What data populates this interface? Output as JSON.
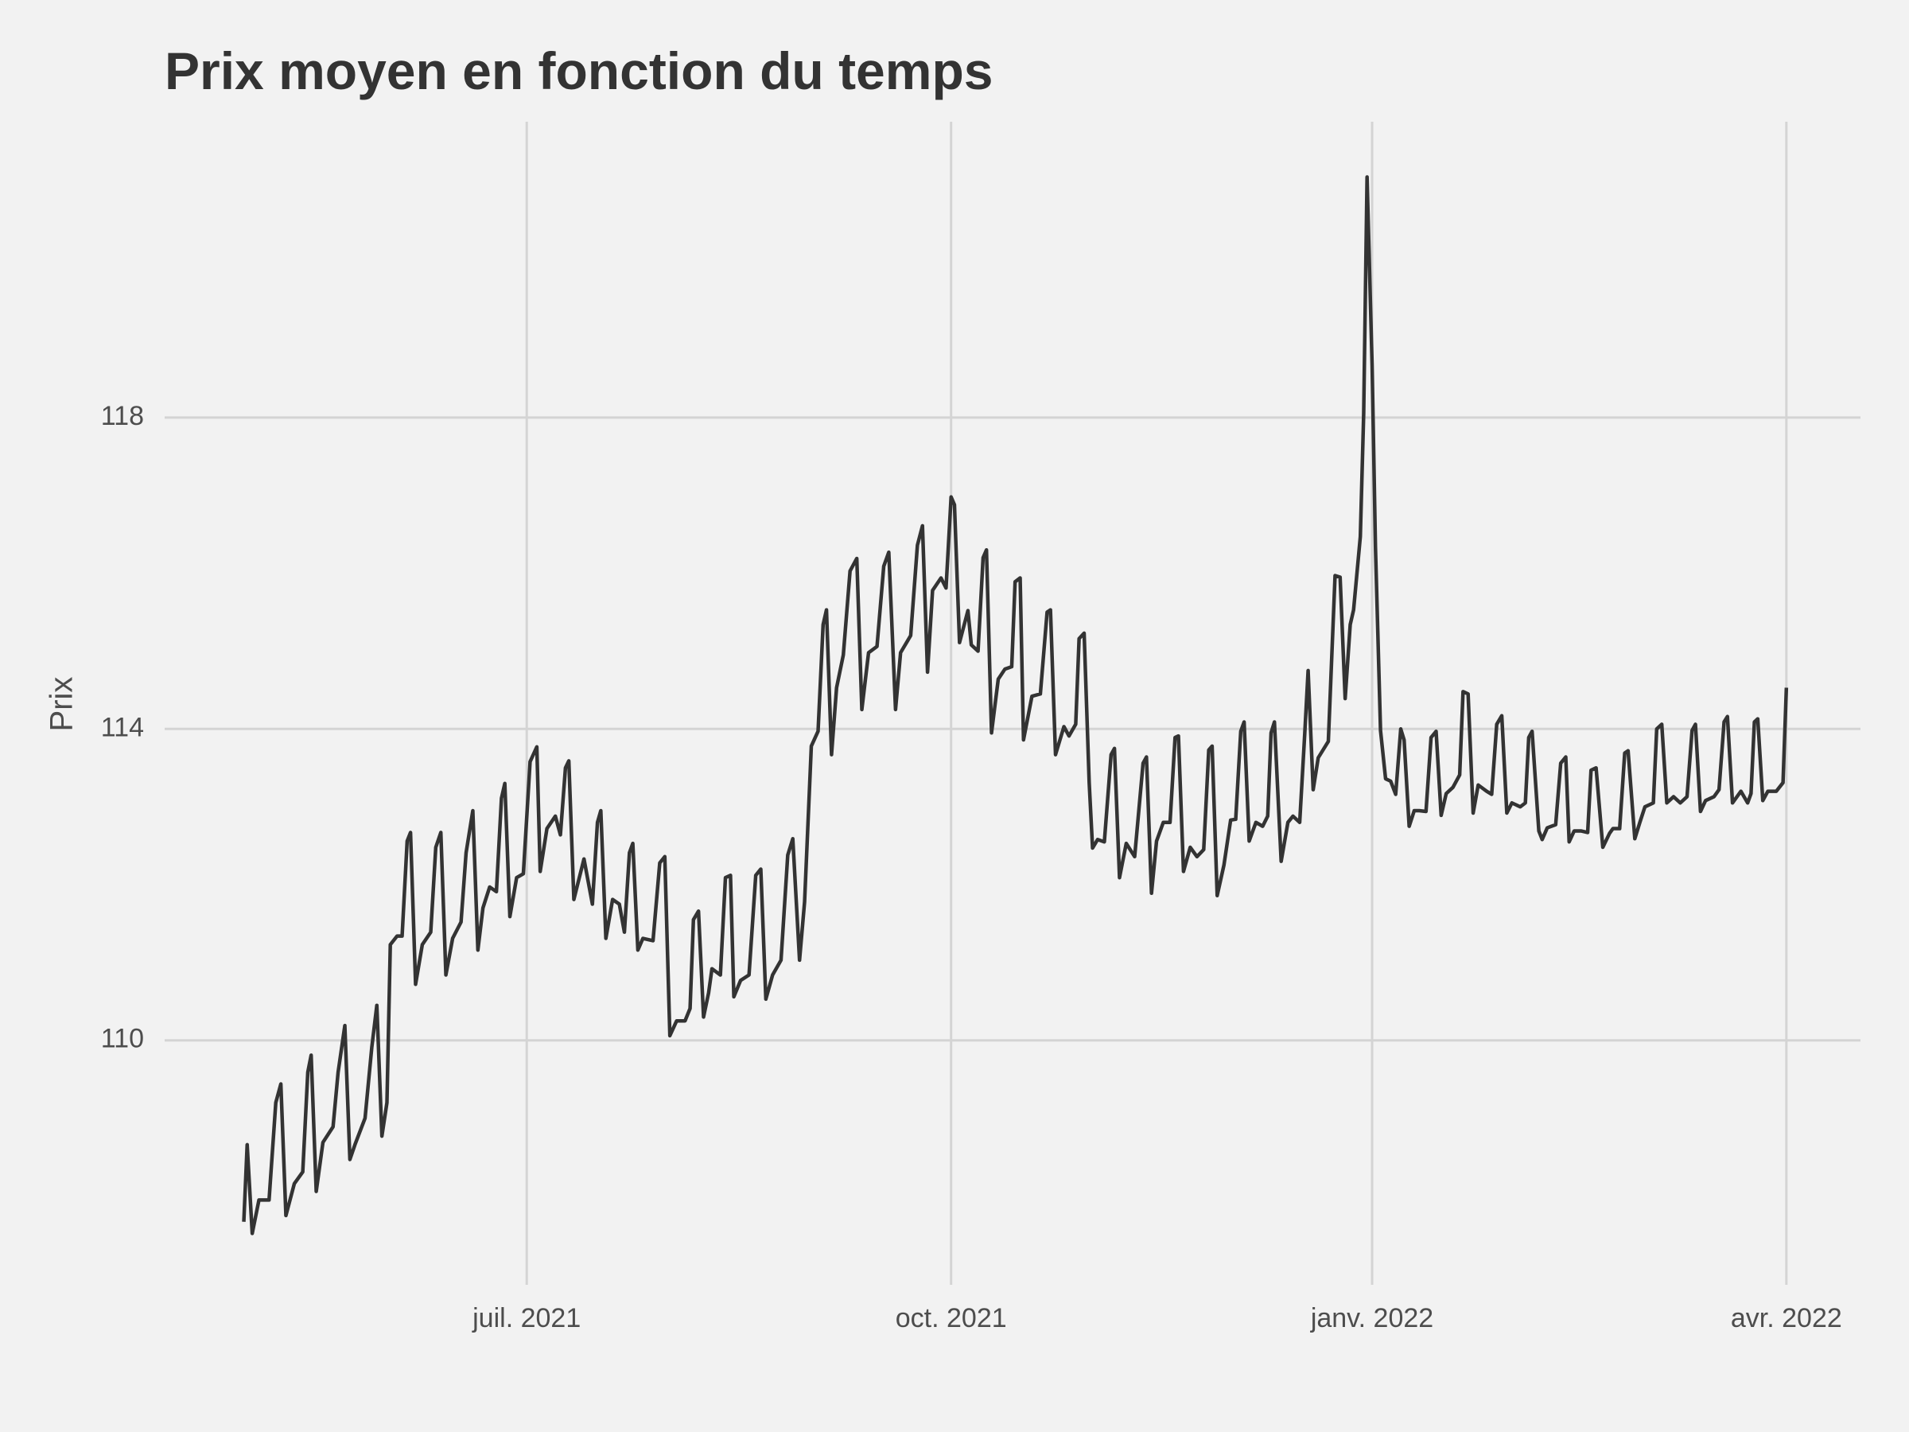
{
  "chart_data": {
    "type": "line",
    "title": "Prix moyen en fonction du temps",
    "y_label": "Prix",
    "color": "#333333",
    "grid": true,
    "xlim": [
      2021.285,
      2022.292
    ],
    "ylim": [
      106.86,
      121.8
    ],
    "xticks": [
      {
        "value": 2021.5,
        "label": "juil. 2021"
      },
      {
        "value": 2021.752,
        "label": "oct. 2021"
      },
      {
        "value": 2022.002,
        "label": "janv. 2022"
      },
      {
        "value": 2022.248,
        "label": "avr. 2022"
      }
    ],
    "yticks": [
      110,
      114,
      118
    ],
    "x": [
      2021.332,
      2021.334,
      2021.337,
      2021.341,
      2021.347,
      2021.351,
      2021.354,
      2021.357,
      2021.362,
      2021.367,
      2021.37,
      2021.372,
      2021.375,
      2021.379,
      2021.385,
      2021.388,
      2021.392,
      2021.395,
      2021.398,
      2021.404,
      2021.408,
      2021.411,
      2021.414,
      2021.417,
      2021.419,
      2021.423,
      2021.426,
      2021.429,
      2021.431,
      2021.434,
      2021.438,
      2021.443,
      2021.446,
      2021.449,
      2021.452,
      2021.456,
      2021.461,
      2021.464,
      2021.468,
      2021.471,
      2021.474,
      2021.478,
      2021.482,
      2021.485,
      2021.487,
      2021.49,
      2021.494,
      2021.498,
      2021.502,
      2021.506,
      2021.508,
      2021.512,
      2021.517,
      2021.52,
      2021.523,
      2021.525,
      2021.528,
      2021.534,
      2021.539,
      2021.542,
      2021.544,
      2021.547,
      2021.551,
      2021.555,
      2021.558,
      2021.561,
      2021.563,
      2021.566,
      2021.569,
      2021.575,
      2021.579,
      2021.582,
      2021.585,
      2021.589,
      2021.594,
      2021.597,
      2021.599,
      2021.602,
      2021.605,
      2021.608,
      2021.61,
      2021.615,
      2021.618,
      2021.621,
      2021.623,
      2021.627,
      2021.632,
      2021.636,
      2021.639,
      2021.642,
      2021.646,
      2021.651,
      2021.655,
      2021.658,
      2021.662,
      2021.665,
      2021.669,
      2021.673,
      2021.676,
      2021.678,
      2021.681,
      2021.684,
      2021.688,
      2021.692,
      2021.696,
      2021.699,
      2021.703,
      2021.708,
      2021.712,
      2021.715,
      2021.719,
      2021.722,
      2021.728,
      2021.732,
      2021.735,
      2021.738,
      2021.741,
      2021.746,
      2021.749,
      2021.752,
      2021.754,
      2021.757,
      2021.762,
      2021.764,
      2021.768,
      2021.771,
      2021.773,
      2021.776,
      2021.78,
      2021.784,
      2021.788,
      2021.79,
      2021.793,
      2021.795,
      2021.8,
      2021.805,
      2021.809,
      2021.811,
      2021.814,
      2021.819,
      2021.822,
      2021.826,
      2021.828,
      2021.831,
      2021.834,
      2021.836,
      2021.839,
      2021.843,
      2021.847,
      2021.849,
      2021.852,
      2021.856,
      2021.861,
      2021.866,
      2021.868,
      2021.871,
      2021.874,
      2021.878,
      2021.882,
      2021.885,
      2021.887,
      2021.89,
      2021.894,
      2021.898,
      2021.902,
      2021.905,
      2021.907,
      2021.91,
      2021.914,
      2021.918,
      2021.921,
      2021.924,
      2021.926,
      2021.929,
      2021.933,
      2021.937,
      2021.94,
      2021.942,
      2021.944,
      2021.948,
      2021.952,
      2021.955,
      2021.959,
      2021.962,
      2021.964,
      2021.967,
      2021.97,
      2021.976,
      2021.98,
      2021.983,
      2021.986,
      2021.989,
      2021.991,
      2021.995,
      2021.997,
      2021.999,
      2022.002,
      2022.004,
      2022.007,
      2022.01,
      2022.013,
      2022.016,
      2022.019,
      2022.021,
      2022.024,
      2022.027,
      2022.03,
      2022.034,
      2022.037,
      2022.04,
      2022.043,
      2022.046,
      2022.05,
      2022.054,
      2022.056,
      2022.059,
      2022.062,
      2022.065,
      2022.07,
      2022.073,
      2022.076,
      2022.079,
      2022.082,
      2022.085,
      2022.09,
      2022.093,
      2022.095,
      2022.097,
      2022.101,
      2022.103,
      2022.106,
      2022.111,
      2022.114,
      2022.117,
      2022.119,
      2022.122,
      2022.126,
      2022.13,
      2022.132,
      2022.135,
      2022.139,
      2022.143,
      2022.145,
      2022.149,
      2022.152,
      2022.154,
      2022.158,
      2022.161,
      2022.164,
      2022.169,
      2022.171,
      2022.174,
      2022.177,
      2022.181,
      2022.185,
      2022.189,
      2022.192,
      2022.194,
      2022.197,
      2022.2,
      2022.205,
      2022.208,
      2022.211,
      2022.213,
      2022.216,
      2022.221,
      2022.225,
      2022.227,
      2022.229,
      2022.231,
      2022.234,
      2022.237,
      2022.242,
      2022.246,
      2022.248
    ],
    "values": [
      107.67,
      108.66,
      107.52,
      107.95,
      107.95,
      109.2,
      109.44,
      107.75,
      108.16,
      108.31,
      109.59,
      109.81,
      108.06,
      108.69,
      108.89,
      109.59,
      110.19,
      108.47,
      108.66,
      109.0,
      109.91,
      110.45,
      108.77,
      109.2,
      111.23,
      111.34,
      111.34,
      112.56,
      112.67,
      110.72,
      111.23,
      111.39,
      112.48,
      112.67,
      110.84,
      111.31,
      111.52,
      112.41,
      112.95,
      111.16,
      111.7,
      111.97,
      111.91,
      113.11,
      113.3,
      111.59,
      112.09,
      112.14,
      113.58,
      113.77,
      112.17,
      112.72,
      112.88,
      112.64,
      113.5,
      113.59,
      111.81,
      112.33,
      111.75,
      112.8,
      112.95,
      111.31,
      111.81,
      111.75,
      111.39,
      112.41,
      112.53,
      111.16,
      111.31,
      111.28,
      112.28,
      112.36,
      110.06,
      110.25,
      110.25,
      110.41,
      111.55,
      111.66,
      110.3,
      110.61,
      110.92,
      110.84,
      112.09,
      112.12,
      110.56,
      110.77,
      110.84,
      112.12,
      112.2,
      110.53,
      110.84,
      111.03,
      112.38,
      112.59,
      111.03,
      111.78,
      113.78,
      113.97,
      115.34,
      115.53,
      113.67,
      114.53,
      114.95,
      116.03,
      116.19,
      114.25,
      114.98,
      115.06,
      116.09,
      116.27,
      114.25,
      114.98,
      115.2,
      116.36,
      116.61,
      114.73,
      115.78,
      115.94,
      115.81,
      116.98,
      116.88,
      115.11,
      115.52,
      115.08,
      115.0,
      116.2,
      116.3,
      113.95,
      114.64,
      114.77,
      114.8,
      115.89,
      115.94,
      113.86,
      114.42,
      114.45,
      115.5,
      115.53,
      113.67,
      114.03,
      113.91,
      114.06,
      115.16,
      115.23,
      113.31,
      112.47,
      112.58,
      112.55,
      113.67,
      113.75,
      112.09,
      112.53,
      112.36,
      113.56,
      113.64,
      111.89,
      112.56,
      112.8,
      112.8,
      113.89,
      113.91,
      112.17,
      112.48,
      112.36,
      112.45,
      113.73,
      113.78,
      111.86,
      112.25,
      112.83,
      112.84,
      113.97,
      114.09,
      112.56,
      112.8,
      112.75,
      112.88,
      113.95,
      114.09,
      112.3,
      112.8,
      112.88,
      112.8,
      113.94,
      114.75,
      113.22,
      113.63,
      113.84,
      115.97,
      115.95,
      114.39,
      115.34,
      115.53,
      116.47,
      118.05,
      121.09,
      118.67,
      116.33,
      113.98,
      113.36,
      113.33,
      113.16,
      114.0,
      113.86,
      112.75,
      112.95,
      112.95,
      112.94,
      113.89,
      113.97,
      112.89,
      113.17,
      113.25,
      113.41,
      114.48,
      114.45,
      112.92,
      113.28,
      113.2,
      113.16,
      114.06,
      114.17,
      112.92,
      113.05,
      113.0,
      113.05,
      113.89,
      113.97,
      112.69,
      112.58,
      112.73,
      112.77,
      113.56,
      113.64,
      112.55,
      112.69,
      112.69,
      112.67,
      113.47,
      113.5,
      112.48,
      112.66,
      112.72,
      112.72,
      113.69,
      113.72,
      112.59,
      112.8,
      113.0,
      113.05,
      114.0,
      114.06,
      113.05,
      113.13,
      113.05,
      113.13,
      113.98,
      114.06,
      112.94,
      113.08,
      113.13,
      113.22,
      114.09,
      114.16,
      113.05,
      113.2,
      113.05,
      113.17,
      114.09,
      114.13,
      113.08,
      113.2,
      113.2,
      113.31,
      114.53
    ]
  }
}
